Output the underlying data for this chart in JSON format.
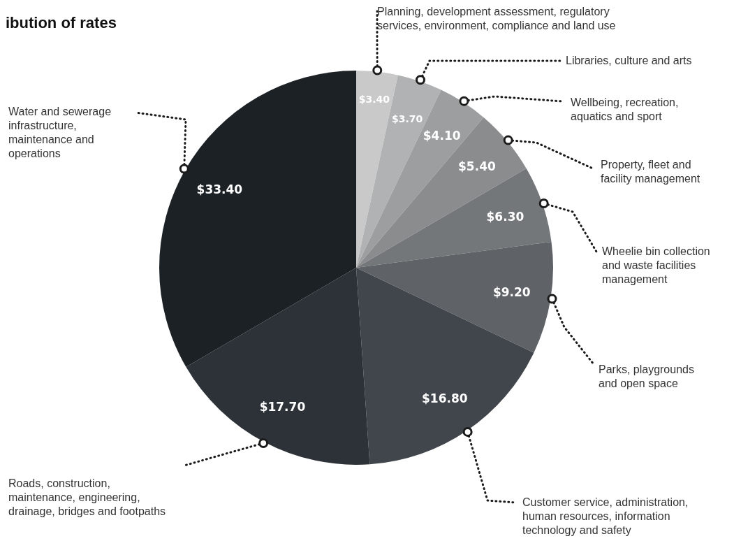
{
  "chart_data": {
    "type": "pie",
    "title": "ibution of rates",
    "categories": [
      "Planning, development assessment, regulatory services, environment, compliance and land use",
      "Libraries, culture and arts",
      "Wellbeing, recreation, aquatics and sport",
      "Property, fleet and facility management",
      "Wheelie bin collection and waste facilities management",
      "Parks, playgrounds and open space",
      "Customer service, administration, human resources, information technology and safety",
      "Roads, construction, maintenance, engineering, drainage, bridges and footpaths",
      "Water and sewerage infrastructure, maintenance and operations"
    ],
    "values": [
      3.4,
      3.7,
      4.1,
      5.4,
      6.3,
      9.2,
      16.8,
      17.7,
      33.4
    ],
    "value_labels": [
      "$3.40",
      "$3.70",
      "$4.10",
      "$5.40",
      "$6.30",
      "$9.20",
      "$16.80",
      "$17.70",
      "$33.40"
    ],
    "colors": [
      "#c9c9c9",
      "#b1b2b3",
      "#9d9e9f",
      "#8a8c8e",
      "#74777a",
      "#5f6367",
      "#40464b",
      "#2c3237",
      "#1c2126"
    ]
  }
}
